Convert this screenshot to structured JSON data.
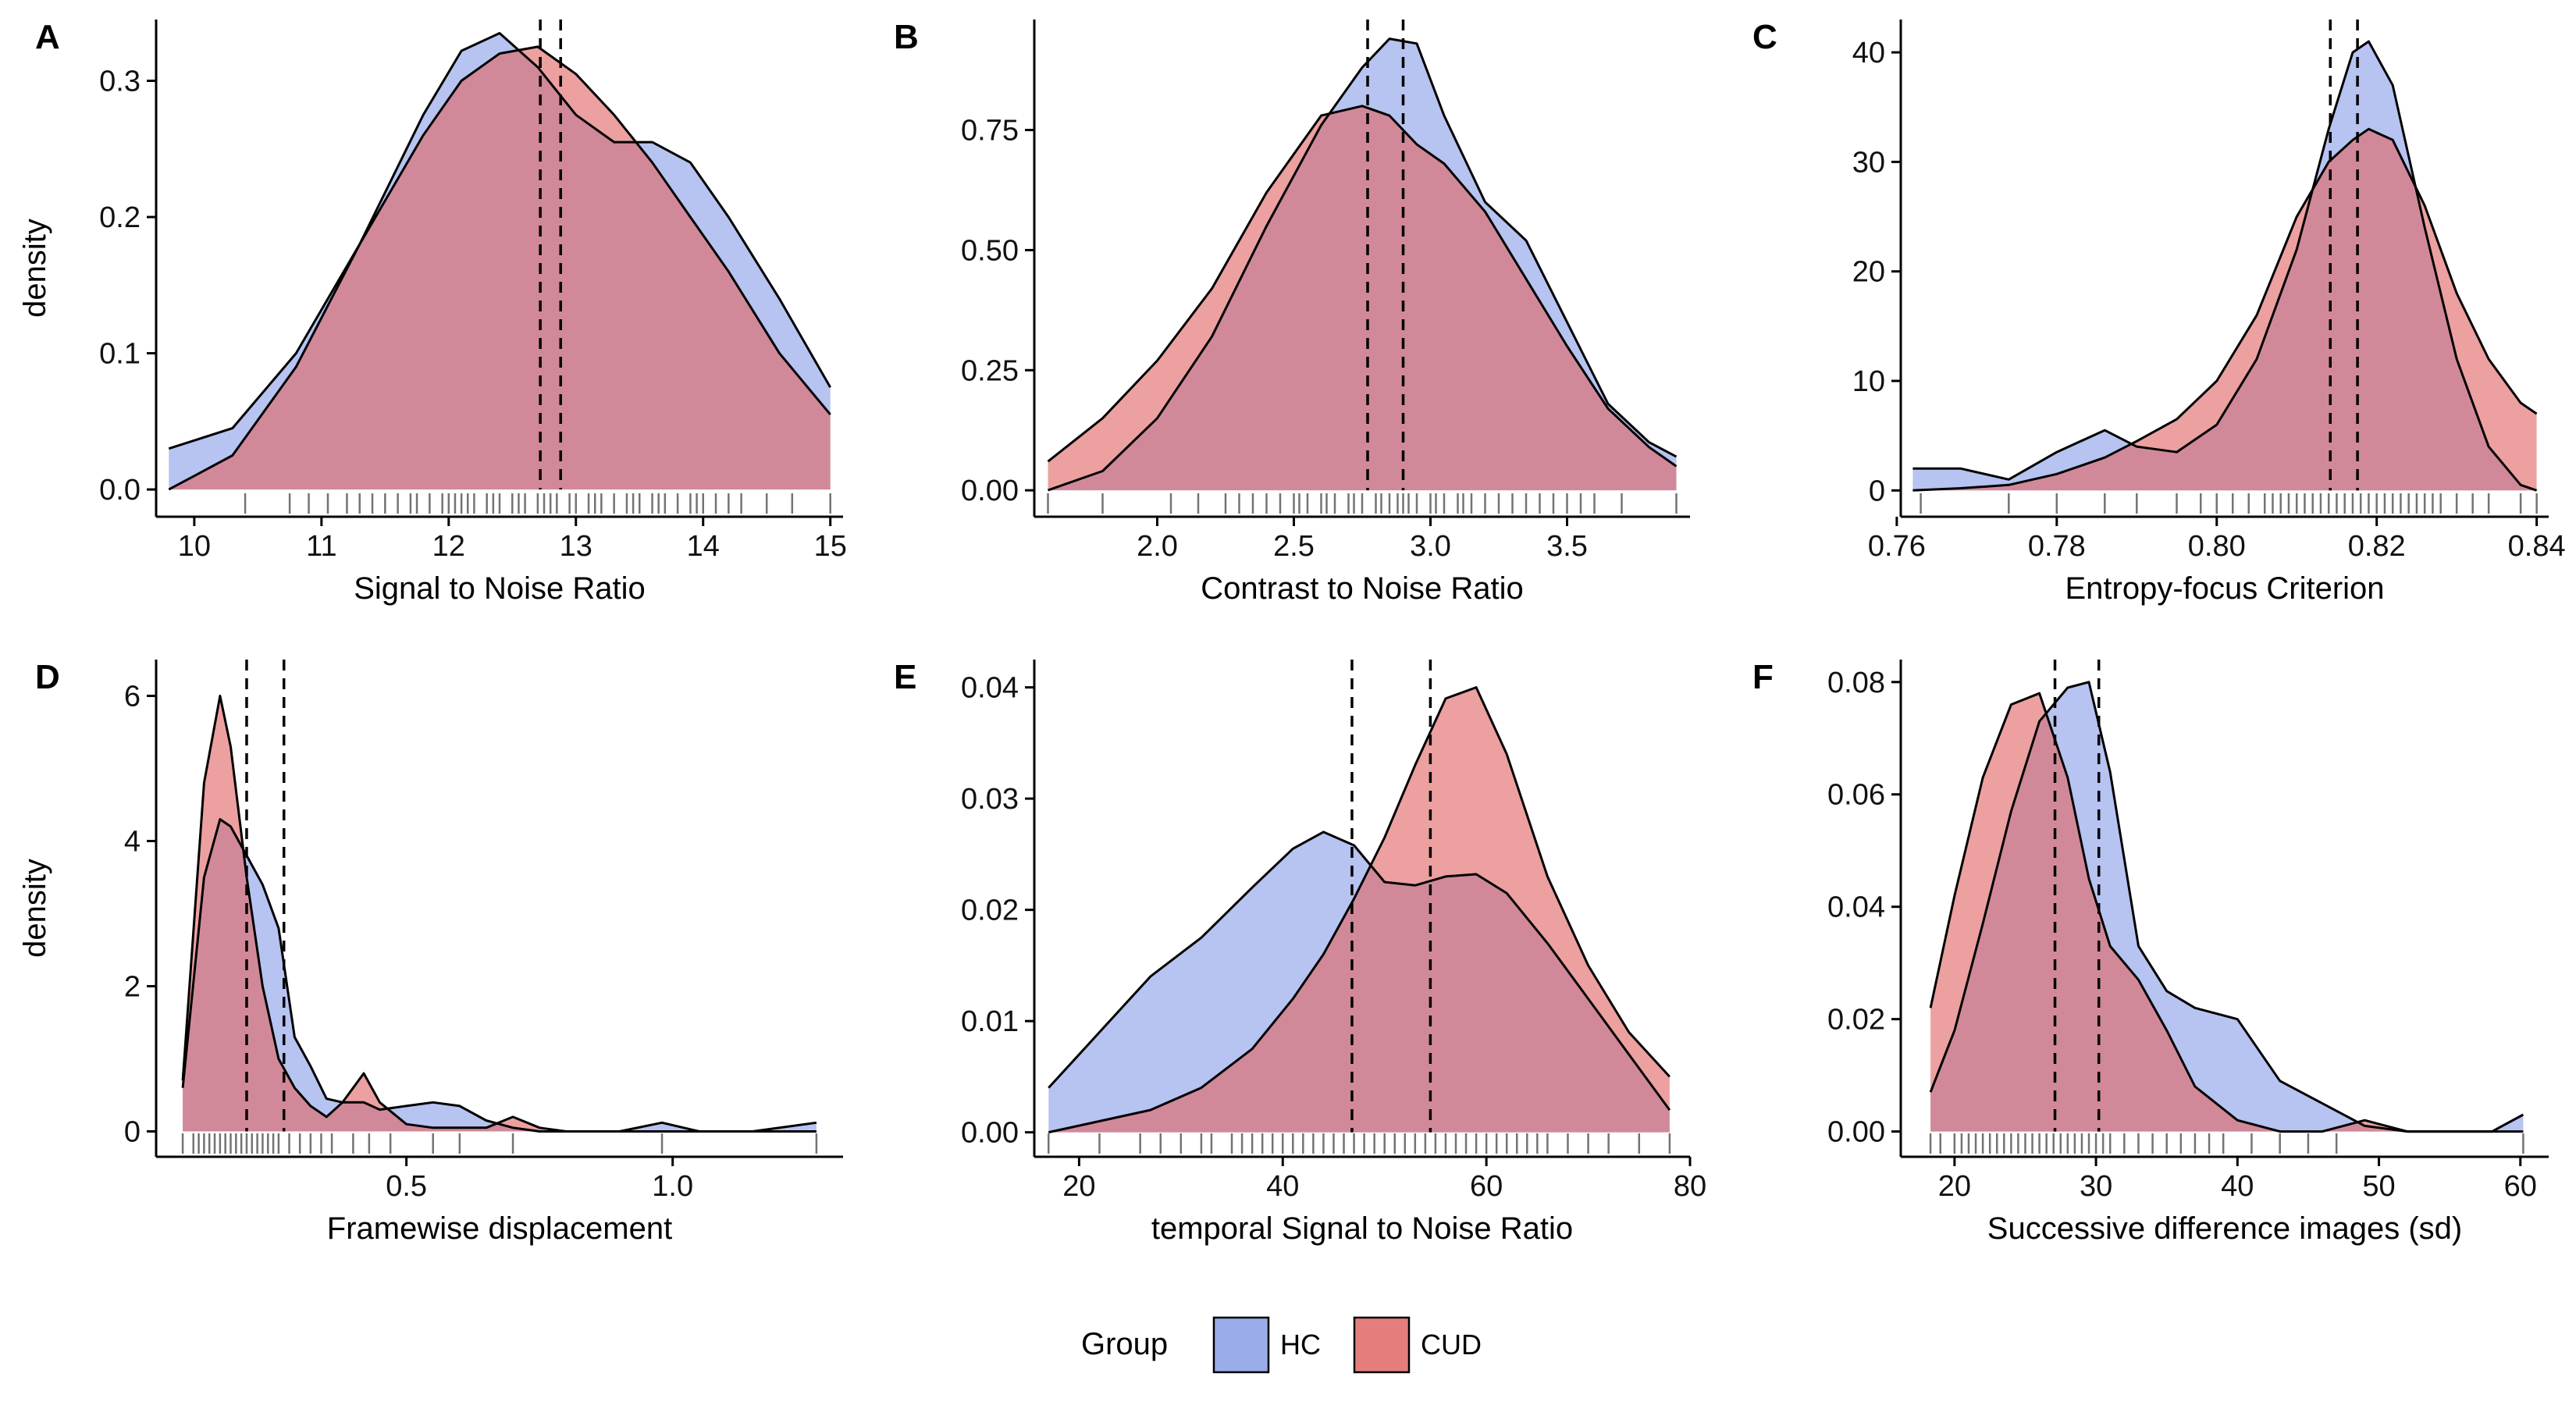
{
  "legend": {
    "title": "Group",
    "items": [
      {
        "label": "HC",
        "color": "#8a9ee6"
      },
      {
        "label": "CUD",
        "color": "#e06666"
      }
    ]
  },
  "colors": {
    "HC": "#8a9ee6",
    "CUD": "#e06666",
    "overlap": "#b05470"
  },
  "chart_data": [
    {
      "type": "area",
      "letter": "A",
      "xlabel": "Signal to Noise Ratio",
      "ylabel": "density",
      "xlim": [
        9.7,
        15.1
      ],
      "ylim": [
        -0.02,
        0.345
      ],
      "xticks": [
        10,
        11,
        12,
        13,
        14,
        15
      ],
      "xtick_labels": [
        "10",
        "11",
        "12",
        "13",
        "14",
        "15"
      ],
      "yticks": [
        0,
        0.1,
        0.2,
        0.3
      ],
      "ytick_labels": [
        "0.0",
        "0.1",
        "0.2",
        "0.3"
      ],
      "x": [
        9.8,
        10.3,
        10.8,
        11.3,
        11.8,
        12.1,
        12.4,
        12.7,
        13.0,
        13.3,
        13.6,
        13.9,
        14.2,
        14.6,
        15.0
      ],
      "series": [
        {
          "name": "HC",
          "values": [
            0.03,
            0.045,
            0.1,
            0.18,
            0.275,
            0.322,
            0.335,
            0.31,
            0.275,
            0.255,
            0.255,
            0.24,
            0.2,
            0.14,
            0.075
          ]
        },
        {
          "name": "CUD",
          "values": [
            0.0,
            0.025,
            0.09,
            0.18,
            0.26,
            0.3,
            0.32,
            0.325,
            0.305,
            0.275,
            0.24,
            0.2,
            0.16,
            0.1,
            0.055
          ]
        }
      ],
      "vlines": [
        12.72,
        12.88
      ],
      "rug": [
        10.4,
        10.75,
        10.9,
        11.05,
        11.2,
        11.3,
        11.4,
        11.5,
        11.6,
        11.7,
        11.75,
        11.85,
        11.95,
        12.0,
        12.05,
        12.1,
        12.15,
        12.2,
        12.3,
        12.35,
        12.4,
        12.5,
        12.55,
        12.6,
        12.7,
        12.75,
        12.8,
        12.85,
        12.95,
        13.0,
        13.1,
        13.15,
        13.2,
        13.3,
        13.4,
        13.45,
        13.5,
        13.6,
        13.65,
        13.7,
        13.8,
        13.9,
        13.95,
        14.0,
        14.1,
        14.2,
        14.3,
        14.5,
        14.7,
        15.0
      ]
    },
    {
      "type": "area",
      "letter": "B",
      "xlabel": "Contrast to Noise Ratio",
      "ylabel": "",
      "xlim": [
        1.55,
        3.95
      ],
      "ylim": [
        -0.055,
        0.98
      ],
      "xticks": [
        2.0,
        2.5,
        3.0,
        3.5
      ],
      "xtick_labels": [
        "2.0",
        "2.5",
        "3.0",
        "3.5"
      ],
      "yticks": [
        0,
        0.25,
        0.5,
        0.75
      ],
      "ytick_labels": [
        "0.00",
        "0.25",
        "0.50",
        "0.75"
      ],
      "x": [
        1.6,
        1.8,
        2.0,
        2.2,
        2.4,
        2.6,
        2.75,
        2.85,
        2.95,
        3.05,
        3.2,
        3.35,
        3.5,
        3.65,
        3.8,
        3.9
      ],
      "series": [
        {
          "name": "HC",
          "values": [
            0.0,
            0.04,
            0.15,
            0.32,
            0.55,
            0.76,
            0.88,
            0.94,
            0.93,
            0.78,
            0.6,
            0.52,
            0.35,
            0.18,
            0.1,
            0.07
          ]
        },
        {
          "name": "CUD",
          "values": [
            0.06,
            0.15,
            0.27,
            0.42,
            0.62,
            0.78,
            0.8,
            0.78,
            0.72,
            0.68,
            0.58,
            0.44,
            0.3,
            0.17,
            0.09,
            0.05
          ]
        }
      ],
      "vlines": [
        2.77,
        2.9
      ],
      "rug": [
        1.6,
        1.8,
        2.05,
        2.15,
        2.25,
        2.3,
        2.35,
        2.4,
        2.45,
        2.5,
        2.52,
        2.55,
        2.6,
        2.62,
        2.65,
        2.7,
        2.72,
        2.75,
        2.8,
        2.82,
        2.85,
        2.88,
        2.9,
        2.92,
        2.95,
        3.0,
        3.02,
        3.05,
        3.1,
        3.12,
        3.15,
        3.2,
        3.25,
        3.3,
        3.35,
        3.4,
        3.45,
        3.5,
        3.55,
        3.6,
        3.7,
        3.9
      ]
    },
    {
      "type": "area",
      "letter": "C",
      "xlabel": "Entropy-focus Criterion",
      "ylabel": "",
      "xlim": [
        0.7605,
        0.8415
      ],
      "ylim": [
        -2.4,
        43
      ],
      "xticks": [
        0.76,
        0.78,
        0.8,
        0.82,
        0.84
      ],
      "xtick_labels": [
        "0.76",
        "0.78",
        "0.80",
        "0.82",
        "0.84"
      ],
      "yticks": [
        0,
        10,
        20,
        30,
        40
      ],
      "ytick_labels": [
        "0",
        "10",
        "20",
        "30",
        "40"
      ],
      "x": [
        0.762,
        0.768,
        0.774,
        0.78,
        0.786,
        0.79,
        0.795,
        0.8,
        0.805,
        0.81,
        0.814,
        0.817,
        0.819,
        0.822,
        0.826,
        0.83,
        0.834,
        0.838,
        0.84
      ],
      "series": [
        {
          "name": "HC",
          "values": [
            2.0,
            2.0,
            1.0,
            3.5,
            5.5,
            4.0,
            3.5,
            6.0,
            12.0,
            22.0,
            33.0,
            40.0,
            41.0,
            37.0,
            24.0,
            12.0,
            4.0,
            0.5,
            0.0
          ]
        },
        {
          "name": "CUD",
          "values": [
            0.0,
            0.2,
            0.5,
            1.5,
            3.0,
            4.5,
            6.5,
            10.0,
            16.0,
            25.0,
            30.0,
            32.0,
            33.0,
            32.0,
            26.0,
            18.0,
            12.0,
            8.0,
            7.0
          ]
        }
      ],
      "vlines": [
        0.8142,
        0.8176
      ],
      "rug": [
        0.763,
        0.774,
        0.78,
        0.786,
        0.79,
        0.795,
        0.798,
        0.8,
        0.802,
        0.804,
        0.806,
        0.807,
        0.808,
        0.809,
        0.81,
        0.811,
        0.812,
        0.813,
        0.814,
        0.815,
        0.816,
        0.817,
        0.818,
        0.819,
        0.82,
        0.821,
        0.822,
        0.823,
        0.824,
        0.825,
        0.826,
        0.827,
        0.828,
        0.83,
        0.832,
        0.834,
        0.838,
        0.84
      ]
    },
    {
      "type": "area",
      "letter": "D",
      "xlabel": "Framewise displacement",
      "ylabel": "density",
      "xlim": [
        0.03,
        1.32
      ],
      "ylim": [
        -0.35,
        6.5
      ],
      "xticks": [
        0.5,
        1.0
      ],
      "xtick_labels": [
        "0.5",
        "1.0"
      ],
      "yticks": [
        0,
        2,
        4,
        6
      ],
      "ytick_labels": [
        "0",
        "2",
        "4",
        "6"
      ],
      "x": [
        0.08,
        0.12,
        0.15,
        0.17,
        0.2,
        0.23,
        0.26,
        0.29,
        0.32,
        0.35,
        0.38,
        0.42,
        0.45,
        0.5,
        0.55,
        0.6,
        0.65,
        0.7,
        0.75,
        0.8,
        0.9,
        0.98,
        1.05,
        1.15,
        1.27
      ],
      "series": [
        {
          "name": "HC",
          "values": [
            0.6,
            3.5,
            4.3,
            4.2,
            3.8,
            3.4,
            2.8,
            1.3,
            0.9,
            0.45,
            0.4,
            0.4,
            0.3,
            0.35,
            0.4,
            0.35,
            0.15,
            0.05,
            0.0,
            0.0,
            0.0,
            0.12,
            0.0,
            0.0,
            0.12
          ]
        },
        {
          "name": "CUD",
          "values": [
            0.7,
            4.8,
            6.0,
            5.3,
            3.5,
            2.0,
            1.0,
            0.6,
            0.35,
            0.2,
            0.4,
            0.8,
            0.4,
            0.1,
            0.05,
            0.05,
            0.05,
            0.2,
            0.05,
            0.0,
            0.0,
            0.0,
            0.0,
            0.0,
            0.0
          ]
        }
      ],
      "vlines": [
        0.2,
        0.27
      ],
      "rug": [
        0.08,
        0.1,
        0.11,
        0.12,
        0.13,
        0.14,
        0.15,
        0.16,
        0.17,
        0.18,
        0.19,
        0.2,
        0.21,
        0.22,
        0.23,
        0.24,
        0.25,
        0.26,
        0.28,
        0.3,
        0.32,
        0.34,
        0.36,
        0.4,
        0.43,
        0.47,
        0.55,
        0.6,
        0.7,
        0.98,
        1.27
      ]
    },
    {
      "type": "area",
      "letter": "E",
      "xlabel": "temporal Signal to Noise Ratio",
      "ylabel": "",
      "xlim": [
        15.6,
        80
      ],
      "ylim": [
        -0.0022,
        0.0425
      ],
      "xticks": [
        20,
        40,
        60,
        80
      ],
      "xtick_labels": [
        "20",
        "40",
        "60",
        "80"
      ],
      "yticks": [
        0,
        0.01,
        0.02,
        0.03,
        0.04
      ],
      "ytick_labels": [
        "0.00",
        "0.01",
        "0.02",
        "0.03",
        "0.04"
      ],
      "x": [
        17,
        22,
        27,
        32,
        37,
        41,
        44,
        47,
        50,
        53,
        56,
        59,
        62,
        66,
        70,
        74,
        78
      ],
      "series": [
        {
          "name": "HC",
          "values": [
            0.004,
            0.009,
            0.014,
            0.0175,
            0.022,
            0.0255,
            0.027,
            0.0258,
            0.0225,
            0.0222,
            0.023,
            0.0232,
            0.0215,
            0.017,
            0.012,
            0.007,
            0.002
          ]
        },
        {
          "name": "CUD",
          "values": [
            0.0,
            0.001,
            0.002,
            0.004,
            0.0075,
            0.012,
            0.016,
            0.021,
            0.0265,
            0.033,
            0.039,
            0.04,
            0.034,
            0.023,
            0.015,
            0.009,
            0.005
          ]
        }
      ],
      "vlines": [
        46.8,
        54.5
      ],
      "rug": [
        17,
        22,
        26,
        28,
        30,
        32,
        33,
        35,
        36,
        37,
        38,
        39,
        40,
        41,
        42,
        43,
        44,
        45,
        46,
        47,
        48,
        49,
        50,
        51,
        52,
        53,
        54,
        55,
        56,
        57,
        58,
        59,
        60,
        61,
        62,
        63,
        64,
        65,
        66,
        68,
        70,
        72,
        75,
        78
      ]
    },
    {
      "type": "area",
      "letter": "F",
      "xlabel": "Successive difference images (sd)",
      "ylabel": "",
      "xlim": [
        16.2,
        62
      ],
      "ylim": [
        -0.0045,
        0.084
      ],
      "xticks": [
        20,
        30,
        40,
        50,
        60
      ],
      "xtick_labels": [
        "20",
        "30",
        "40",
        "50",
        "60"
      ],
      "yticks": [
        0,
        0.02,
        0.04,
        0.06,
        0.08
      ],
      "ytick_labels": [
        "0.00",
        "0.02",
        "0.04",
        "0.06",
        "0.08"
      ],
      "x": [
        18.3,
        20,
        22,
        24,
        26,
        28,
        29.5,
        31,
        33,
        35,
        37,
        40,
        43,
        46,
        49,
        52,
        55,
        58,
        60.2
      ],
      "series": [
        {
          "name": "HC",
          "values": [
            0.007,
            0.018,
            0.037,
            0.057,
            0.073,
            0.079,
            0.08,
            0.064,
            0.033,
            0.025,
            0.022,
            0.02,
            0.009,
            0.005,
            0.001,
            0.0,
            0.0,
            0.0,
            0.003
          ]
        },
        {
          "name": "CUD",
          "values": [
            0.022,
            0.042,
            0.063,
            0.076,
            0.078,
            0.063,
            0.045,
            0.033,
            0.027,
            0.018,
            0.008,
            0.002,
            0.0,
            0.0,
            0.002,
            0.0,
            0.0,
            0.0,
            0.0
          ]
        }
      ],
      "vlines": [
        27.1,
        30.2
      ],
      "rug": [
        18.3,
        19,
        20,
        20.5,
        21,
        21.5,
        22,
        22.5,
        23,
        23.5,
        24,
        24.5,
        25,
        25.5,
        26,
        26.5,
        27,
        27.5,
        28,
        28.5,
        29,
        29.5,
        30,
        30.5,
        31,
        32,
        33,
        34,
        35,
        36,
        37,
        38,
        39,
        41,
        43,
        45,
        47,
        60.2
      ]
    }
  ]
}
